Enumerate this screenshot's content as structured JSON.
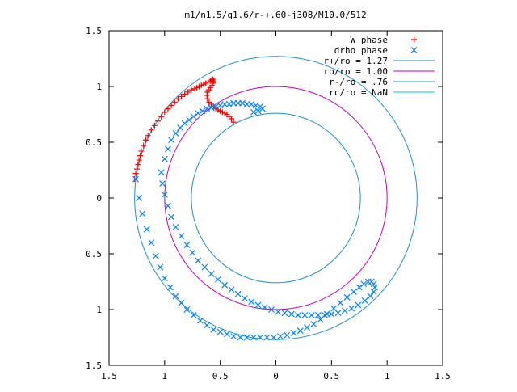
{
  "chart_data": {
    "type": "scatter",
    "title": "m1/n1.5/q1.6/r-+.60-j308/M10.0/512",
    "xlim": [
      -1.5,
      1.5
    ],
    "ylim": [
      -1.5,
      1.5
    ],
    "x_ticks": [
      {
        "value": -1.5,
        "label": "1.5"
      },
      {
        "value": -1.0,
        "label": "1"
      },
      {
        "value": -0.5,
        "label": "0.5"
      },
      {
        "value": 0.0,
        "label": "0"
      },
      {
        "value": 0.5,
        "label": "0.5"
      },
      {
        "value": 1.0,
        "label": "1"
      },
      {
        "value": 1.5,
        "label": "1.5"
      }
    ],
    "y_ticks": [
      {
        "value": 1.5,
        "label": "1.5"
      },
      {
        "value": 1.0,
        "label": "1"
      },
      {
        "value": 0.5,
        "label": "0.5"
      },
      {
        "value": 0.0,
        "label": "0"
      },
      {
        "value": -0.5,
        "label": "0.5"
      },
      {
        "value": -1.0,
        "label": "1"
      },
      {
        "value": -1.5,
        "label": "1.5"
      }
    ],
    "grid": false,
    "legend_position": "top-right",
    "series": [
      {
        "name": "W phase",
        "marker": "plus",
        "color": "#ff0000",
        "x": [
          -1.27,
          -1.26,
          -1.25,
          -1.24,
          -1.23,
          -1.22,
          -1.21,
          -1.19,
          -1.17,
          -1.15,
          -1.12,
          -1.09,
          -1.06,
          -1.03,
          -1.0,
          -0.97,
          -0.94,
          -0.91,
          -0.88,
          -0.85,
          -0.82,
          -0.79,
          -0.76,
          -0.73,
          -0.71,
          -0.69,
          -0.67,
          -0.65,
          -0.63,
          -0.61,
          -0.59,
          -0.575,
          -0.565,
          -0.56,
          -0.565,
          -0.575,
          -0.59,
          -0.605,
          -0.615,
          -0.62,
          -0.615,
          -0.6,
          -0.58,
          -0.56,
          -0.54,
          -0.52,
          -0.5,
          -0.48,
          -0.46,
          -0.44,
          -0.42,
          -0.4,
          -0.38
        ],
        "y": [
          0.17,
          0.22,
          0.26,
          0.3,
          0.34,
          0.38,
          0.42,
          0.47,
          0.52,
          0.56,
          0.61,
          0.65,
          0.69,
          0.73,
          0.77,
          0.8,
          0.83,
          0.86,
          0.89,
          0.91,
          0.93,
          0.95,
          0.97,
          0.98,
          0.99,
          1.0,
          1.01,
          1.02,
          1.03,
          1.04,
          1.05,
          1.06,
          1.065,
          1.05,
          1.03,
          1.01,
          0.99,
          0.97,
          0.95,
          0.92,
          0.89,
          0.86,
          0.84,
          0.82,
          0.8,
          0.79,
          0.78,
          0.77,
          0.76,
          0.75,
          0.73,
          0.71,
          0.68
        ]
      },
      {
        "name": "drho phase",
        "marker": "cross",
        "color": "#0080ff",
        "x": [
          -1.26,
          -1.23,
          -1.2,
          -1.16,
          -1.12,
          -1.08,
          -1.04,
          -1.0,
          -0.95,
          -0.9,
          -0.85,
          -0.8,
          -0.74,
          -0.68,
          -0.62,
          -0.56,
          -0.5,
          -0.44,
          -0.38,
          -0.32,
          -0.26,
          -0.2,
          -0.14,
          -0.08,
          -0.02,
          0.04,
          0.1,
          0.16,
          0.22,
          0.28,
          0.34,
          0.4,
          0.46,
          0.52,
          0.58,
          0.64,
          0.7,
          0.75,
          0.79,
          0.83,
          0.86,
          0.88,
          0.89,
          0.88,
          0.85,
          0.8,
          0.74,
          0.68,
          0.62,
          0.56,
          0.5,
          0.44,
          0.38,
          0.32,
          0.26,
          0.2,
          0.14,
          0.08,
          0.02,
          -0.04,
          -0.1,
          -0.16,
          -0.22,
          -0.28,
          -0.34,
          -0.4,
          -0.46,
          -0.52,
          -0.58,
          -0.64,
          -0.7,
          -0.75,
          -0.8,
          -0.85,
          -0.9,
          -0.94,
          -0.97,
          -1.0,
          -1.02,
          -1.03,
          -1.0,
          -0.97,
          -0.94,
          -0.9,
          -0.86,
          -0.82,
          -0.78,
          -0.74,
          -0.7,
          -0.66,
          -0.62,
          -0.58,
          -0.54,
          -0.5,
          -0.46,
          -0.42,
          -0.38,
          -0.34,
          -0.3,
          -0.26,
          -0.22,
          -0.18,
          -0.14,
          -0.12,
          -0.16,
          -0.2
        ],
        "y": [
          0.17,
          0.0,
          -0.14,
          -0.28,
          -0.4,
          -0.52,
          -0.62,
          -0.72,
          -0.8,
          -0.88,
          -0.94,
          -1.0,
          -1.05,
          -1.1,
          -1.14,
          -1.18,
          -1.2,
          -1.22,
          -1.24,
          -1.25,
          -1.25,
          -1.25,
          -1.25,
          -1.25,
          -1.25,
          -1.24,
          -1.23,
          -1.21,
          -1.19,
          -1.16,
          -1.13,
          -1.09,
          -1.04,
          -0.99,
          -0.94,
          -0.89,
          -0.84,
          -0.8,
          -0.77,
          -0.75,
          -0.75,
          -0.77,
          -0.8,
          -0.84,
          -0.88,
          -0.92,
          -0.96,
          -0.99,
          -1.01,
          -1.03,
          -1.04,
          -1.05,
          -1.05,
          -1.05,
          -1.05,
          -1.05,
          -1.04,
          -1.03,
          -1.02,
          -1.0,
          -0.98,
          -0.96,
          -0.93,
          -0.9,
          -0.86,
          -0.82,
          -0.78,
          -0.73,
          -0.68,
          -0.62,
          -0.56,
          -0.49,
          -0.42,
          -0.34,
          -0.26,
          -0.17,
          -0.07,
          0.03,
          0.13,
          0.23,
          0.35,
          0.44,
          0.52,
          0.58,
          0.63,
          0.67,
          0.7,
          0.73,
          0.76,
          0.78,
          0.8,
          0.81,
          0.82,
          0.83,
          0.84,
          0.84,
          0.85,
          0.85,
          0.85,
          0.84,
          0.84,
          0.83,
          0.82,
          0.8,
          0.78,
          0.77
        ]
      }
    ],
    "circles": [
      {
        "name": "r+/ro = 1.27",
        "radius": 1.27,
        "color": "#1e90c8"
      },
      {
        "name": "ro/ro = 1.00",
        "radius": 1.0,
        "color": "#c000c0"
      },
      {
        "name": "r-/ro = .76",
        "radius": 0.76,
        "color": "#1e90c8"
      },
      {
        "name": "rc/ro = NaN",
        "radius": null,
        "color": "#00c0e0"
      }
    ]
  }
}
